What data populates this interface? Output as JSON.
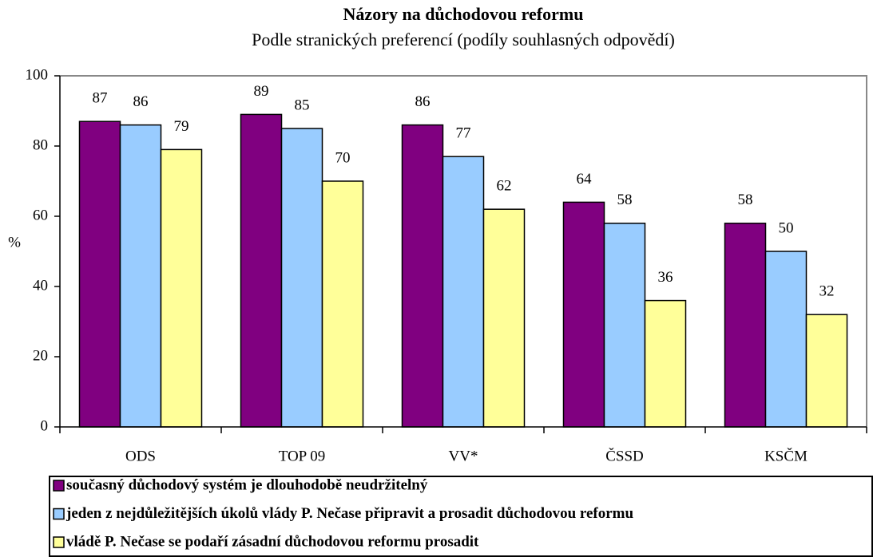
{
  "chart_data": {
    "type": "bar",
    "title": "Názory na důchodovou reformu",
    "subtitle": "Podle stranických preferencí (podíly souhlasných odpovědí)",
    "y_label": "%",
    "categories": [
      "ODS",
      "TOP 09",
      "VV*",
      "ČSSD",
      "KSČM"
    ],
    "series": [
      {
        "name": "současný důchodový systém je dlouhodobě neudržitelný",
        "color": "#800080",
        "values": [
          87,
          89,
          86,
          64,
          58
        ]
      },
      {
        "name": "jeden z nejdůležitějších úkolů vlády P. Nečase připravit a prosadit důchodovou reformu",
        "color": "#99ccff",
        "values": [
          86,
          85,
          77,
          58,
          50
        ]
      },
      {
        "name": "vládě P. Nečase se podaří zásadní důchodovou reformu prosadit",
        "color": "#ffff99",
        "values": [
          79,
          70,
          62,
          36,
          32
        ]
      }
    ],
    "ylim": [
      0,
      100
    ],
    "yticks": [
      0,
      20,
      40,
      60,
      80,
      100
    ],
    "grid": false,
    "legend": "bottom"
  }
}
